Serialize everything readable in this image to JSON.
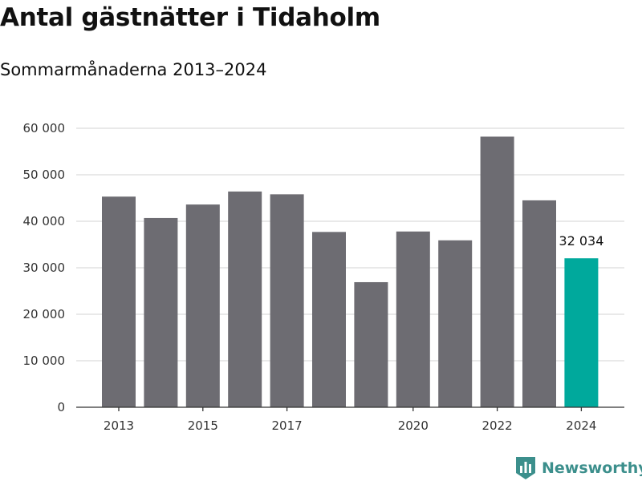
{
  "title": "Antal gästnätter i Tidaholm",
  "subtitle": "Sommarmånaderna 2013–2024",
  "brand": {
    "name": "Newsworthy",
    "icon": "bar-chart-shield-icon",
    "color": "#3c8f8c"
  },
  "chart_data": {
    "type": "bar",
    "categories": [
      "2013",
      "2014",
      "2015",
      "2016",
      "2017",
      "2018",
      "2019",
      "2020",
      "2021",
      "2022",
      "2023",
      "2024"
    ],
    "values": [
      45300,
      40700,
      43600,
      46400,
      45800,
      37700,
      26900,
      37800,
      35900,
      58200,
      44500,
      32034
    ],
    "x_tick_labels": [
      "2013",
      "2015",
      "2017",
      "2020",
      "2022",
      "2024"
    ],
    "y_tick_labels": [
      "0",
      "10 000",
      "20 000",
      "30 000",
      "40 000",
      "50 000",
      "60 000"
    ],
    "y_ticks": [
      0,
      10000,
      20000,
      30000,
      40000,
      50000,
      60000
    ],
    "ylim": [
      0,
      60000
    ],
    "data_labels": [
      {
        "category": "2024",
        "text": "32 034"
      }
    ],
    "colors": {
      "bar": "#6d6c72",
      "highlight": "#00a99c",
      "highlight_category": "2024",
      "grid": "#dcdcdc"
    },
    "grid": true,
    "legend": "none",
    "xlabel": "",
    "ylabel": ""
  }
}
